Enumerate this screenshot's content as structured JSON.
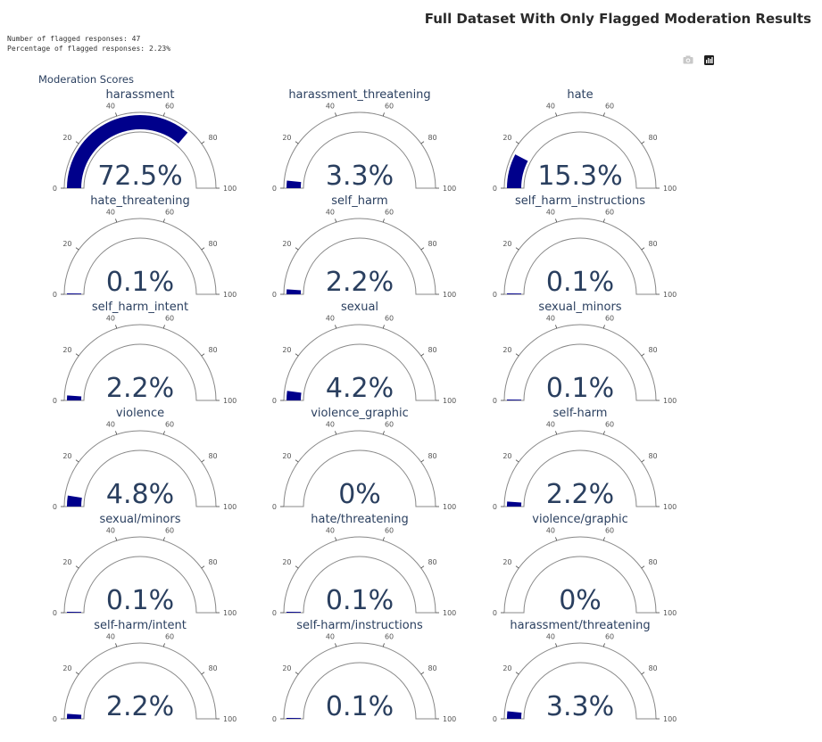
{
  "header": {
    "title": "Full Dataset With Only Flagged Moderation Results",
    "flagged_count_text": "Number of flagged responses: 47",
    "flagged_pct_text": "Percentage of flagged responses: 2.23%"
  },
  "toolbar": {
    "icons": [
      "camera-icon",
      "plotly-logo-icon"
    ]
  },
  "colors": {
    "bar": "#00008b",
    "outline": "#888888",
    "text": "#2a3f5f"
  },
  "chart_data": {
    "type": "gauge",
    "title": "Moderation Scores",
    "axis_range": [
      0,
      100
    ],
    "tick_values": [
      0,
      20,
      40,
      60,
      80,
      100
    ],
    "tick_labels": [
      "0",
      "20",
      "40",
      "60",
      "80",
      "100"
    ],
    "gauges": [
      {
        "name": "harassment",
        "value": 72.5,
        "label": "72.5%"
      },
      {
        "name": "harassment_threatening",
        "value": 3.3,
        "label": "3.3%"
      },
      {
        "name": "hate",
        "value": 15.3,
        "label": "15.3%"
      },
      {
        "name": "hate_threatening",
        "value": 0.1,
        "label": "0.1%"
      },
      {
        "name": "self_harm",
        "value": 2.2,
        "label": "2.2%"
      },
      {
        "name": "self_harm_instructions",
        "value": 0.1,
        "label": "0.1%"
      },
      {
        "name": "self_harm_intent",
        "value": 2.2,
        "label": "2.2%"
      },
      {
        "name": "sexual",
        "value": 4.2,
        "label": "4.2%"
      },
      {
        "name": "sexual_minors",
        "value": 0.1,
        "label": "0.1%"
      },
      {
        "name": "violence",
        "value": 4.8,
        "label": "4.8%"
      },
      {
        "name": "violence_graphic",
        "value": 0,
        "label": "0%"
      },
      {
        "name": "self-harm",
        "value": 2.2,
        "label": "2.2%"
      },
      {
        "name": "sexual/minors",
        "value": 0.1,
        "label": "0.1%"
      },
      {
        "name": "hate/threatening",
        "value": 0.1,
        "label": "0.1%"
      },
      {
        "name": "violence/graphic",
        "value": 0,
        "label": "0%"
      },
      {
        "name": "self-harm/intent",
        "value": 2.2,
        "label": "2.2%"
      },
      {
        "name": "self-harm/instructions",
        "value": 0.1,
        "label": "0.1%"
      },
      {
        "name": "harassment/threatening",
        "value": 3.3,
        "label": "3.3%"
      }
    ]
  }
}
